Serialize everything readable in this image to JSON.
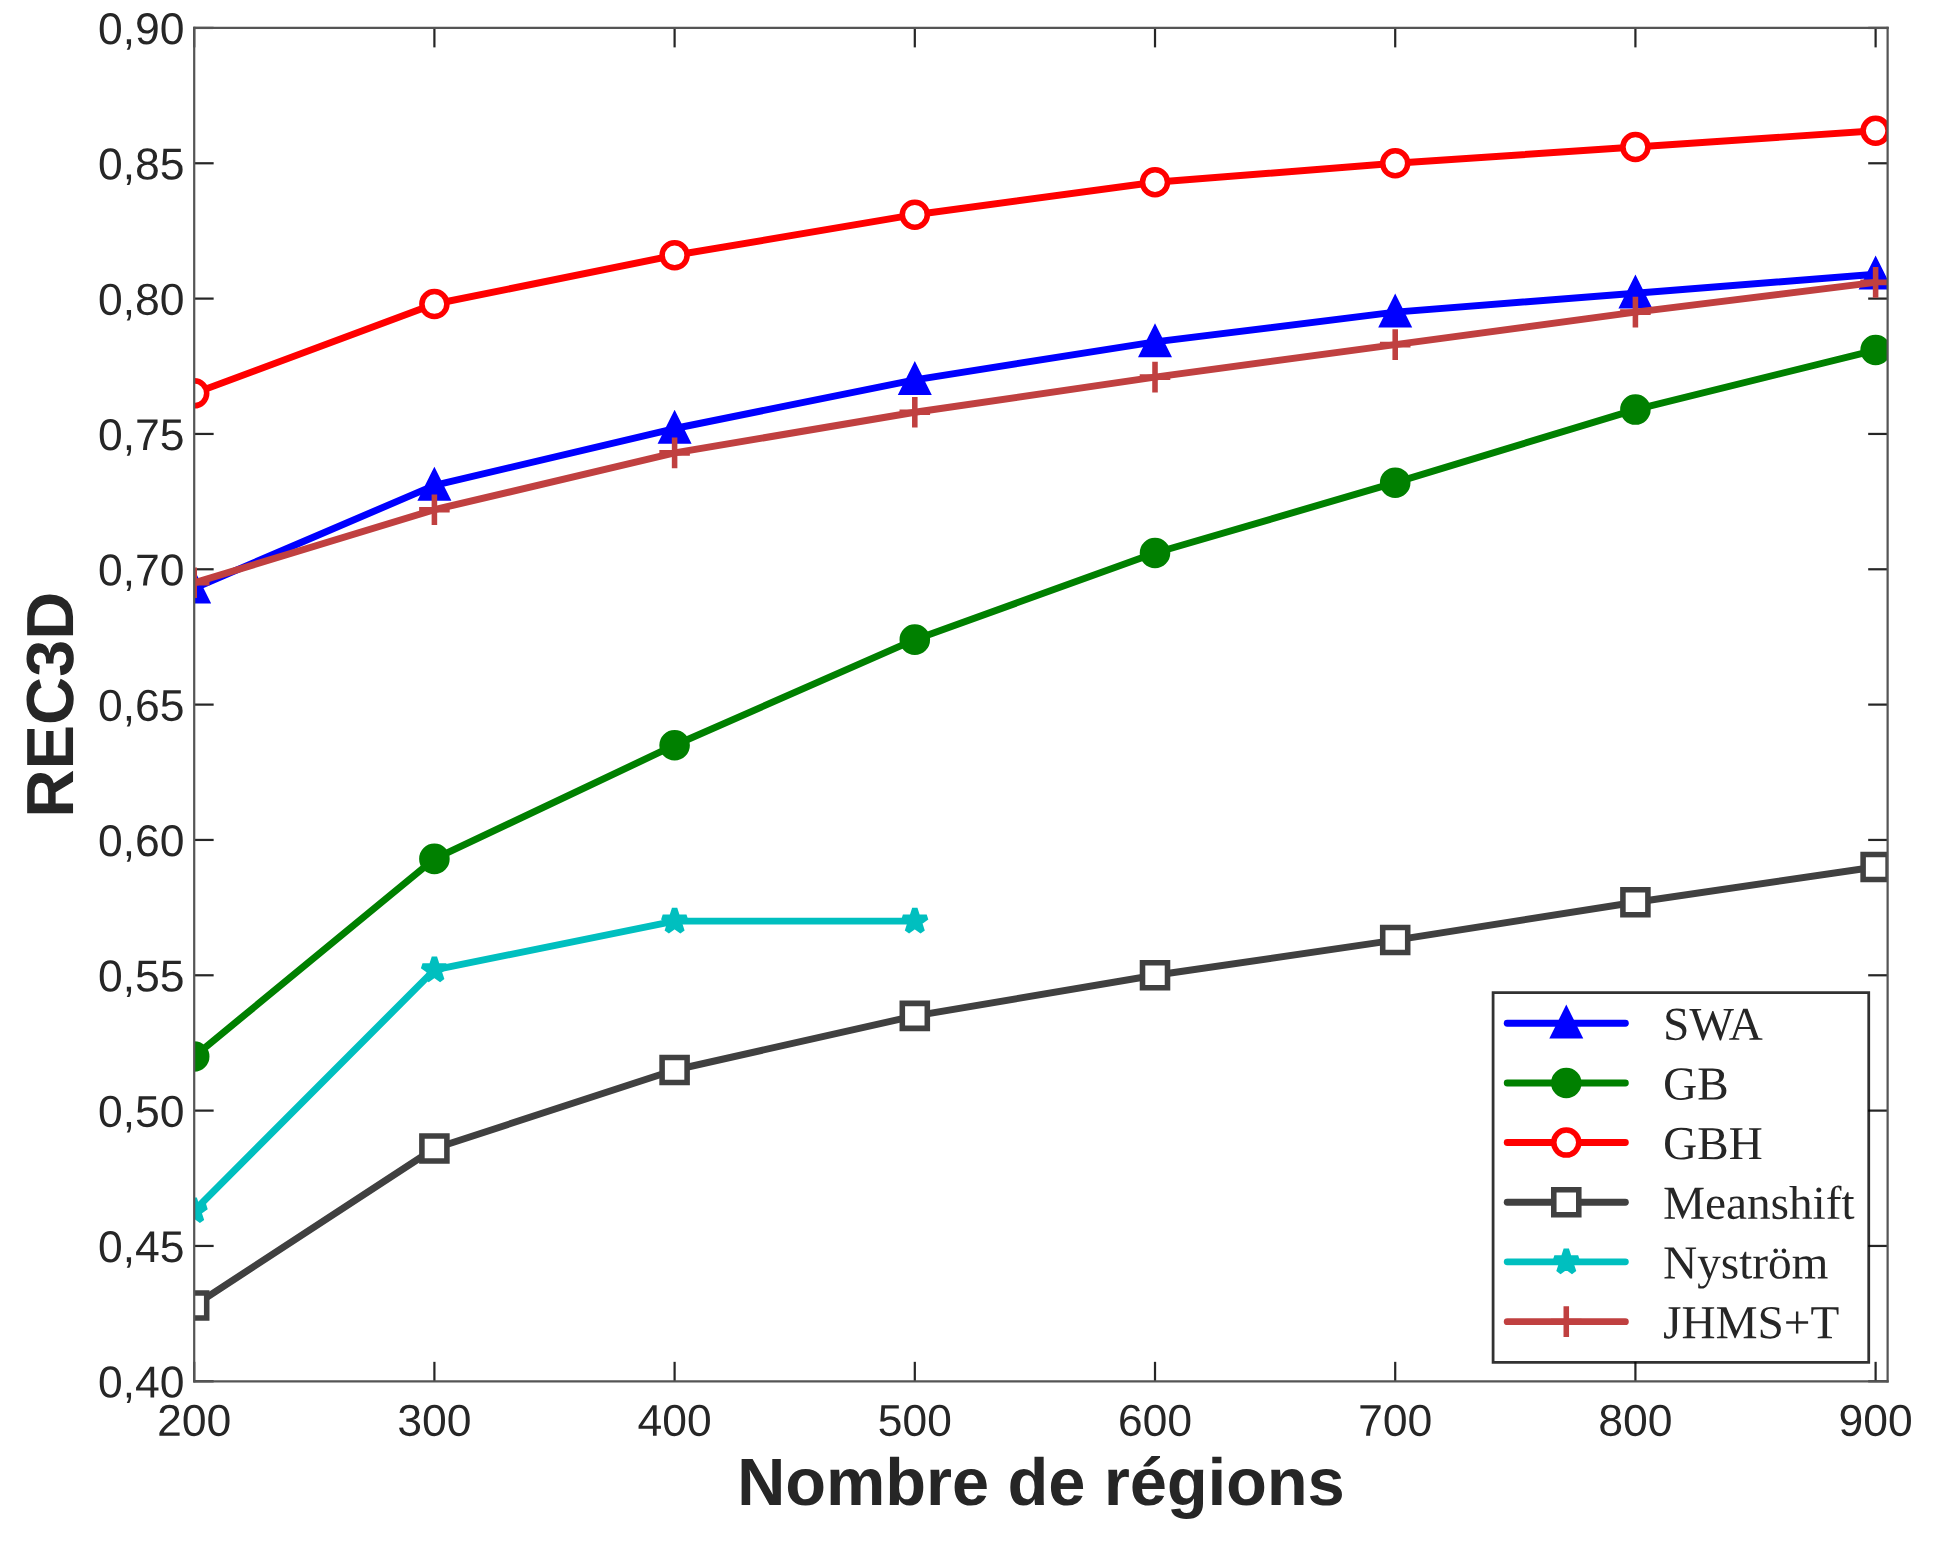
{
  "chart_data": {
    "type": "line",
    "xlabel": "Nombre de régions",
    "ylabel": "REC3D",
    "x": [
      200,
      300,
      400,
      500,
      600,
      700,
      800,
      900
    ],
    "series": [
      {
        "name": "SWA",
        "color": "#0000ff",
        "marker": "triangle",
        "values": [
          0.693,
          0.731,
          0.752,
          0.77,
          0.784,
          0.795,
          0.802,
          0.809
        ]
      },
      {
        "name": "GB",
        "color": "#008000",
        "marker": "circle",
        "values": [
          0.52,
          0.593,
          0.635,
          0.674,
          0.706,
          0.732,
          0.759,
          0.781
        ]
      },
      {
        "name": "GBH",
        "color": "#ff0000",
        "marker": "circle_open",
        "values": [
          0.765,
          0.798,
          0.816,
          0.831,
          0.843,
          0.85,
          0.856,
          0.862
        ]
      },
      {
        "name": "Meanshift",
        "color": "#404040",
        "marker": "square_open",
        "values": [
          0.428,
          0.486,
          0.515,
          0.535,
          0.55,
          0.563,
          0.577,
          0.59
        ]
      },
      {
        "name": "Nyström",
        "color": "#00bfbf",
        "marker": "star",
        "x": [
          200,
          300,
          400,
          500
        ],
        "values": [
          0.463,
          0.552,
          0.57,
          0.57
        ]
      },
      {
        "name": "JHMS+T",
        "color": "#c04040",
        "marker": "cross",
        "values": [
          0.695,
          0.722,
          0.743,
          0.758,
          0.771,
          0.783,
          0.795,
          0.806
        ]
      }
    ],
    "xlim": [
      200,
      905
    ],
    "xticks": [
      200,
      300,
      400,
      500,
      600,
      700,
      800,
      900
    ],
    "ylim": [
      0.4,
      0.9
    ],
    "yticks": [
      {
        "value": 0.4,
        "label": "0,40"
      },
      {
        "value": 0.45,
        "label": "0,45"
      },
      {
        "value": 0.5,
        "label": "0,50"
      },
      {
        "value": 0.55,
        "label": "0,55"
      },
      {
        "value": 0.6,
        "label": "0,60"
      },
      {
        "value": 0.65,
        "label": "0,65"
      },
      {
        "value": 0.7,
        "label": "0,70"
      },
      {
        "value": 0.75,
        "label": "0,75"
      },
      {
        "value": 0.8,
        "label": "0,80"
      },
      {
        "value": 0.85,
        "label": "0,85"
      },
      {
        "value": 0.9,
        "label": "0,90"
      }
    ],
    "grid": false,
    "legend": "bottom right",
    "line_style": "solid"
  }
}
